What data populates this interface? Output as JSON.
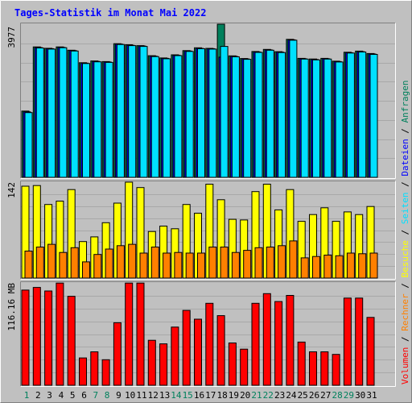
{
  "title": "Tages-Statistik im Monat Mai 2022",
  "colors": {
    "background": "#c0c0c0",
    "title": "#0000ff",
    "anfragen": "#00805c",
    "dateien": "#0000ff",
    "seiten": "#00e0ff",
    "besuche": "#ffff00",
    "rechner": "#ff8000",
    "volumen": "#ff0000",
    "weekend_day": "#00805c",
    "weekday": "#000000"
  },
  "legend": {
    "anfragen": "Anfragen",
    "dateien": "Dateien",
    "seiten": "Seiten",
    "besuche": "Besuche",
    "rechner": "Rechner",
    "volumen": "Volumen",
    "sep": "/"
  },
  "chart_data": {
    "type": "bar",
    "title": "Tages-Statistik im Monat Mai 2022",
    "categories": [
      "1",
      "2",
      "3",
      "4",
      "5",
      "6",
      "7",
      "8",
      "9",
      "10",
      "11",
      "12",
      "13",
      "14",
      "15",
      "16",
      "17",
      "18",
      "19",
      "20",
      "21",
      "22",
      "23",
      "24",
      "25",
      "26",
      "27",
      "28",
      "29",
      "30",
      "31"
    ],
    "weekend_days": [
      1,
      7,
      8,
      14,
      15,
      21,
      22,
      28,
      29
    ],
    "panels": [
      {
        "id": "top",
        "axis_label": "3977",
        "max": 3977,
        "series": [
          {
            "name": "Anfragen",
            "values": [
              1720,
              3387,
              3352,
              3387,
              3301,
              2977,
              3023,
              3006,
              3470,
              3444,
              3420,
              3158,
              3101,
              3181,
              3291,
              3363,
              3350,
              3977,
              3155,
              3085,
              3267,
              3322,
              3264,
              3584,
              3090,
              3073,
              3090,
              3017,
              3249,
              3277,
              3215
            ]
          },
          {
            "name": "Dateien",
            "values": [
              1700,
              3370,
              3340,
              3375,
              3290,
              2965,
              3010,
              2995,
              3460,
              3429,
              3410,
              3145,
              3090,
              3170,
              3280,
              3350,
              3340,
              3120,
              3140,
              3075,
              3255,
              3310,
              3250,
              3570,
              3080,
              3060,
              3080,
              3005,
              3237,
              3264,
              3203
            ]
          },
          {
            "name": "Seiten",
            "values": [
              1680,
              3360,
              3330,
              3365,
              3280,
              2955,
              3000,
              2985,
              3450,
              3420,
              3400,
              3135,
              3080,
              3160,
              3270,
              3340,
              3330,
              3400,
              3130,
              3065,
              3245,
              3300,
              3240,
              3560,
              3070,
              3050,
              3070,
              2995,
              3227,
              3254,
              3193
            ]
          }
        ]
      },
      {
        "id": "middle",
        "axis_label": "142",
        "max": 142,
        "series": [
          {
            "name": "Besuche",
            "values": [
              136,
              137,
              109,
              114,
              131,
              54,
              61,
              82,
              111,
              142,
              134,
              69,
              77,
              73,
              109,
              96,
              139,
              116,
              87,
              86,
              128,
              139,
              101,
              131,
              84,
              94,
              104,
              84,
              98,
              94,
              106
            ]
          },
          {
            "name": "Rechner",
            "values": [
              40,
              46,
              50,
              38,
              45,
              24,
              35,
              43,
              48,
              50,
              37,
              46,
              37,
              38,
              37,
              37,
              46,
              46,
              38,
              41,
              45,
              46,
              48,
              55,
              30,
              32,
              34,
              33,
              37,
              36,
              37
            ]
          }
        ]
      },
      {
        "id": "bottom",
        "axis_label": "116.16 MB",
        "max": 116.16,
        "series": [
          {
            "name": "Volumen",
            "values": [
              108,
              111,
              107,
              116,
              101,
              31,
              38,
              29,
              71,
              116,
              116,
              51,
              47,
              66,
              85,
              75,
              93,
              79,
              48,
              41,
              93,
              104,
              95,
              102,
              49,
              38,
              38,
              35,
              99,
              99,
              77
            ]
          }
        ]
      }
    ]
  }
}
